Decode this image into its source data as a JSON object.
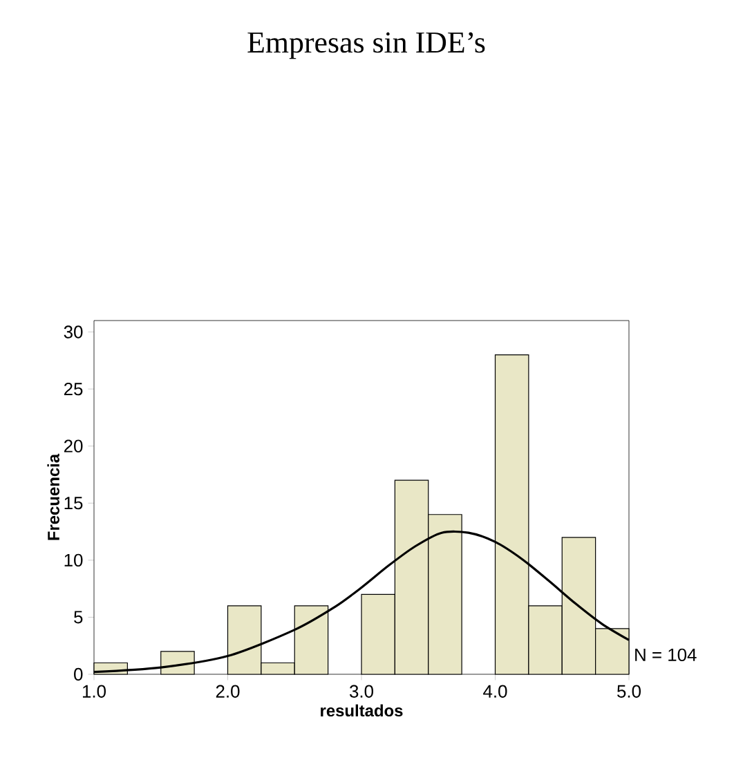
{
  "chart_data": {
    "type": "histogram",
    "title": "Empresas sin IDE’s",
    "xlabel": "resultados",
    "ylabel": "Frecuencia",
    "bins": [
      1.0,
      1.25,
      1.5,
      1.75,
      2.0,
      2.25,
      2.5,
      2.75,
      3.0,
      3.25,
      3.5,
      3.75,
      4.0,
      4.25,
      4.5,
      4.75,
      5.0
    ],
    "values": [
      1,
      0,
      2,
      0,
      6,
      1,
      6,
      0,
      7,
      17,
      14,
      0,
      28,
      6,
      12,
      4
    ],
    "color": "#e9e7c6",
    "series": [
      {
        "type": "line",
        "color": "#000000",
        "x": [
          1.0,
          1.5,
          2.0,
          2.5,
          2.8,
          3.0,
          3.2,
          3.4,
          3.6,
          3.8,
          4.0,
          4.2,
          4.4,
          4.6,
          4.8,
          5.0
        ],
        "values": [
          0.2,
          0.6,
          1.6,
          3.9,
          5.9,
          7.6,
          9.5,
          11.2,
          12.4,
          12.4,
          11.6,
          10.1,
          8.2,
          6.2,
          4.4,
          3.0
        ]
      }
    ],
    "xlim": [
      1.0,
      5.0
    ],
    "ylim": [
      0,
      31
    ],
    "xticks": [
      {
        "value": 1,
        "label": "1.0"
      },
      {
        "value": 2,
        "label": "2.0"
      },
      {
        "value": 3,
        "label": "3.0"
      },
      {
        "value": 4,
        "label": "4.0"
      },
      {
        "value": 5,
        "label": "5.0"
      }
    ],
    "yticks": [
      0,
      5,
      10,
      15,
      20,
      25,
      30
    ],
    "annotations": [
      "N = 104"
    ]
  }
}
